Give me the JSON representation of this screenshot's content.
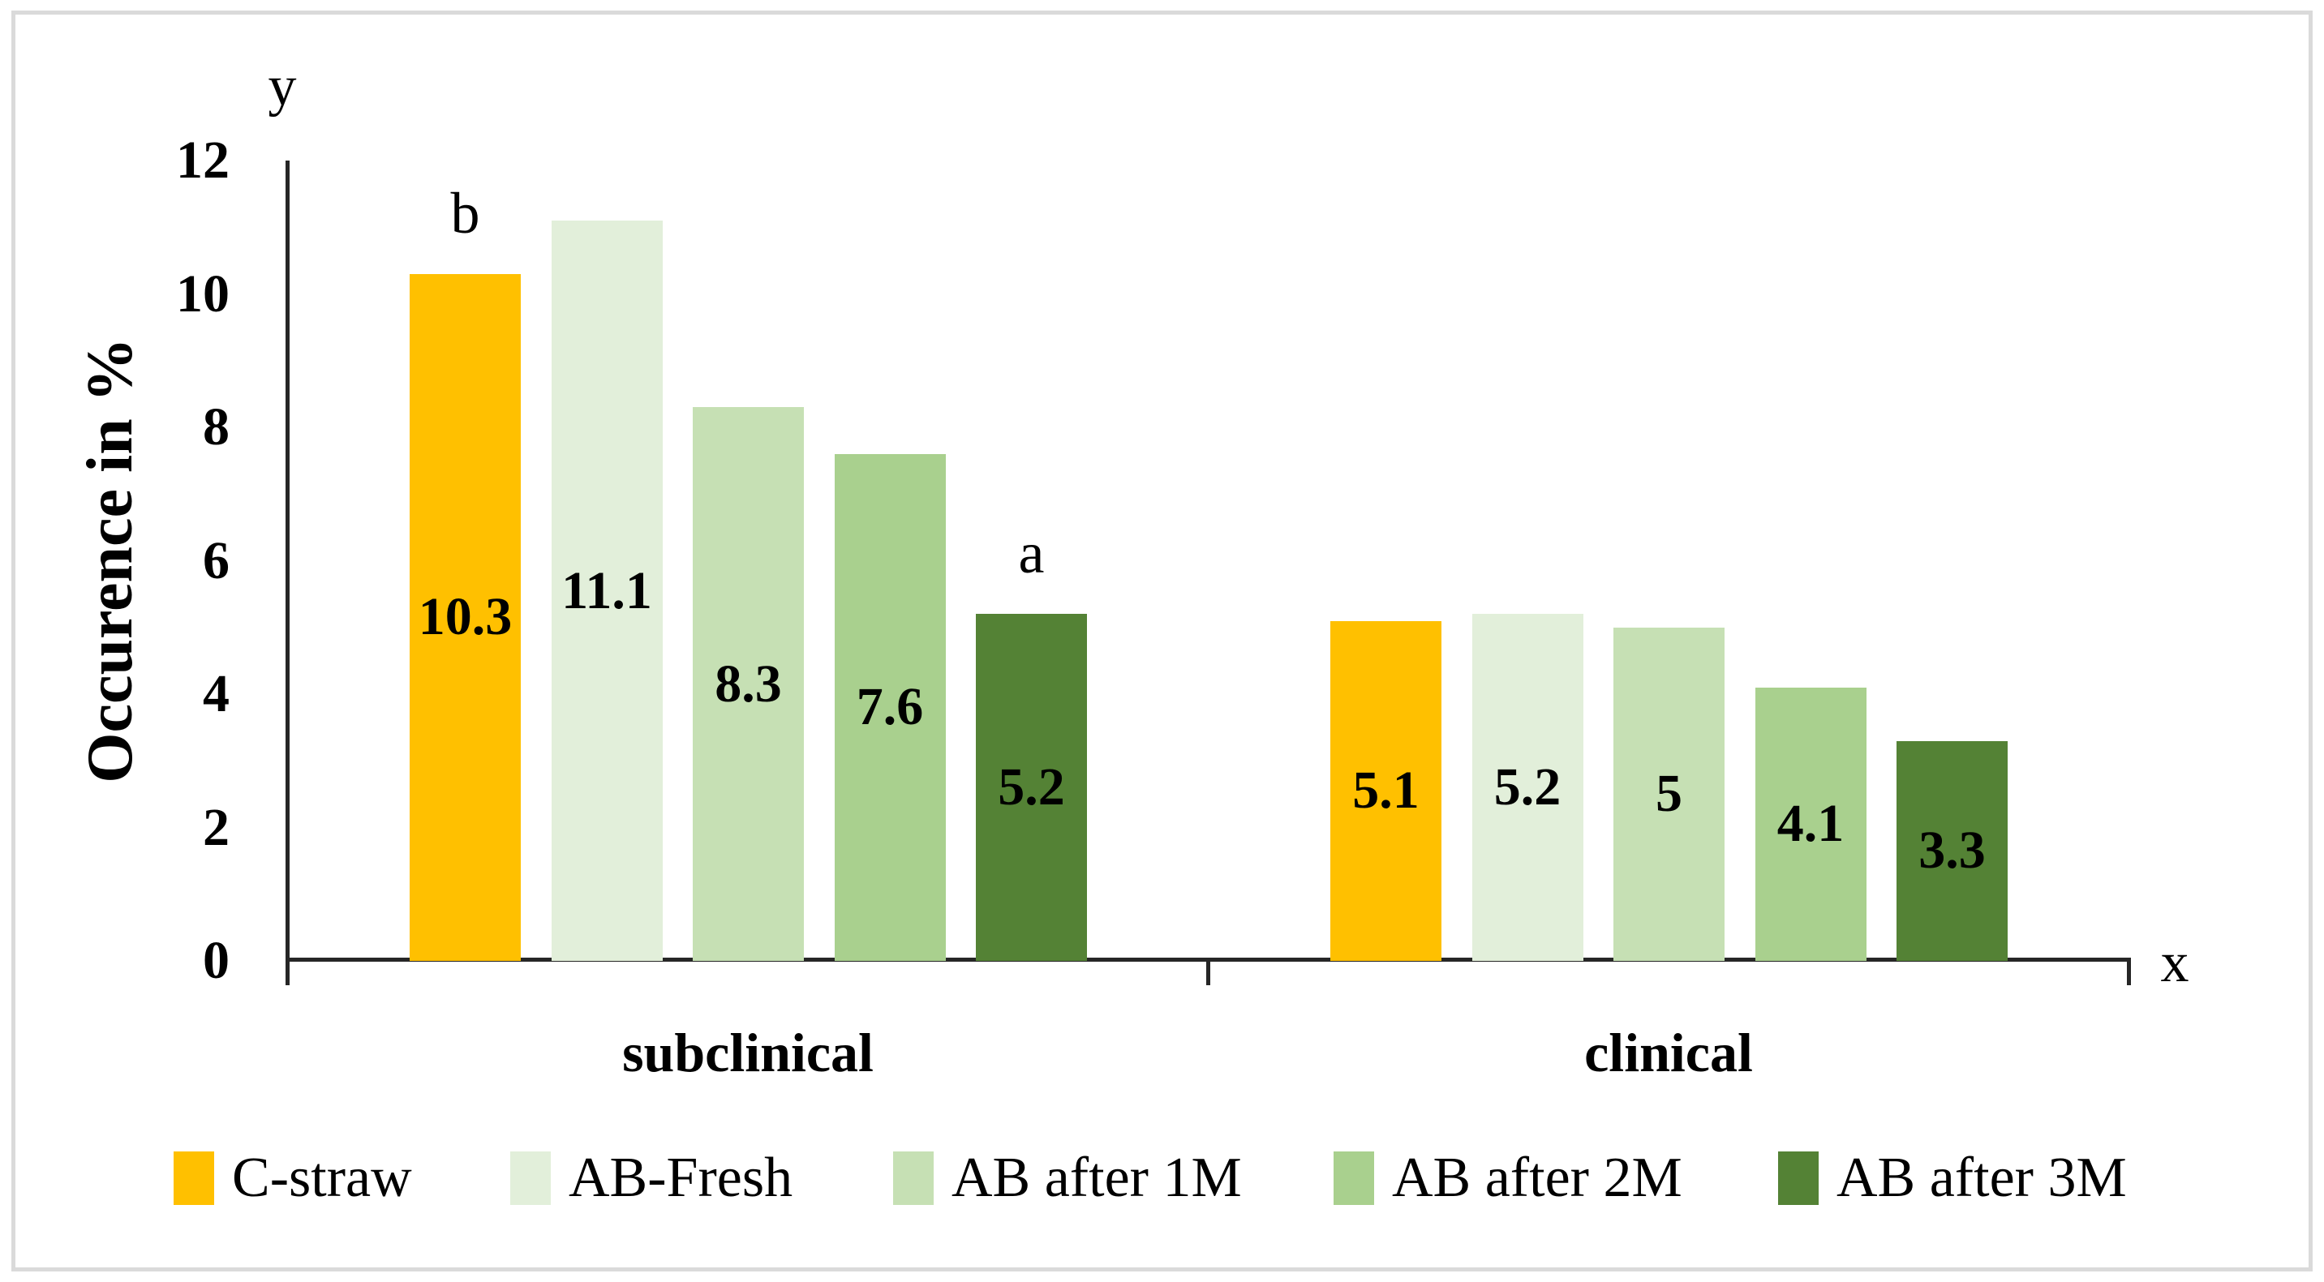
{
  "figure": {
    "axis_letter_y": "y",
    "axis_letter_x": "x",
    "y_axis_title": "Occurence in %"
  },
  "chart_data": {
    "type": "bar",
    "title": "",
    "categories": [
      "subclinical",
      "clinical"
    ],
    "series": [
      {
        "name": "C-straw",
        "color": "#FFC000",
        "values": [
          10.3,
          5.1
        ],
        "labels": [
          "10.3",
          "5.1"
        ]
      },
      {
        "name": "AB-Fresh",
        "color": "#E2EFDA",
        "values": [
          11.1,
          5.2
        ],
        "labels": [
          "11.1",
          "5.2"
        ]
      },
      {
        "name": "AB after 1M",
        "color": "#C6E0B4",
        "values": [
          8.3,
          5.0
        ],
        "labels": [
          "8.3",
          "5"
        ]
      },
      {
        "name": "AB after 2M",
        "color": "#A9D08E",
        "values": [
          7.6,
          4.1
        ],
        "labels": [
          "7.6",
          "4.1"
        ]
      },
      {
        "name": "AB after 3M",
        "color": "#548235",
        "values": [
          5.2,
          3.3
        ],
        "labels": [
          "5.2",
          "3.3"
        ]
      }
    ],
    "y_ticks": [
      0,
      2,
      4,
      6,
      8,
      10,
      12
    ],
    "ylim": [
      0,
      12
    ],
    "ylabel": "Occurence in %",
    "xlabel": "",
    "grid": false,
    "legend_position": "bottom",
    "axis_color": "#262626",
    "annotations": [
      {
        "text": "b",
        "category": "subclinical",
        "series": "C-straw"
      },
      {
        "text": "a",
        "category": "subclinical",
        "series": "AB after 3M"
      }
    ]
  }
}
